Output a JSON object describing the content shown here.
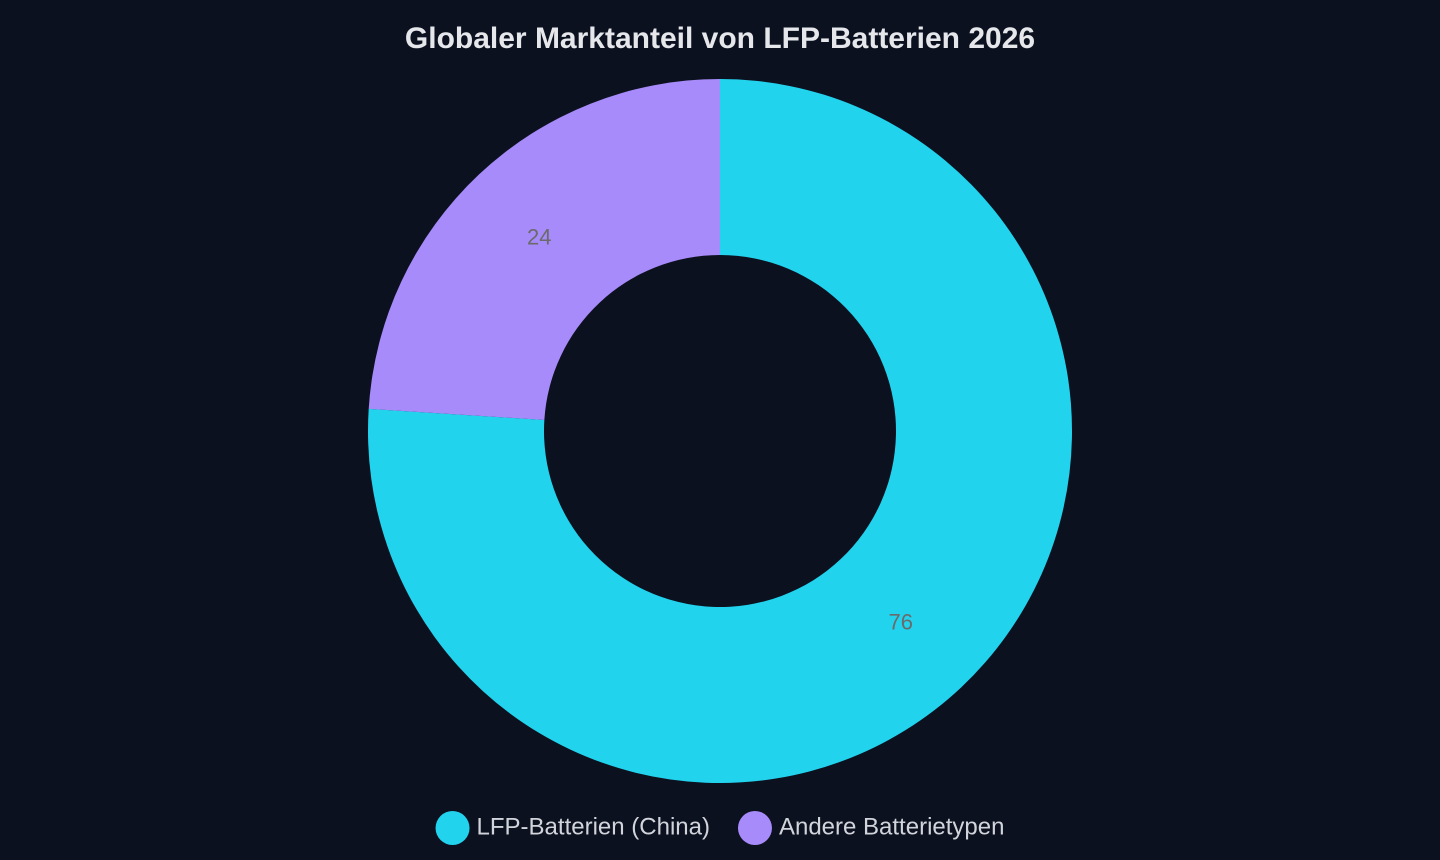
{
  "chart_data": {
    "type": "doughnut",
    "title": "Globaler Marktanteil von LFP-Batterien 2026",
    "categories": [
      "LFP-Batterien (China)",
      "Andere Batterietypen"
    ],
    "values": [
      76,
      24
    ],
    "colors": [
      "#22d3ee",
      "#a78bfa"
    ],
    "legend": "bottom"
  }
}
